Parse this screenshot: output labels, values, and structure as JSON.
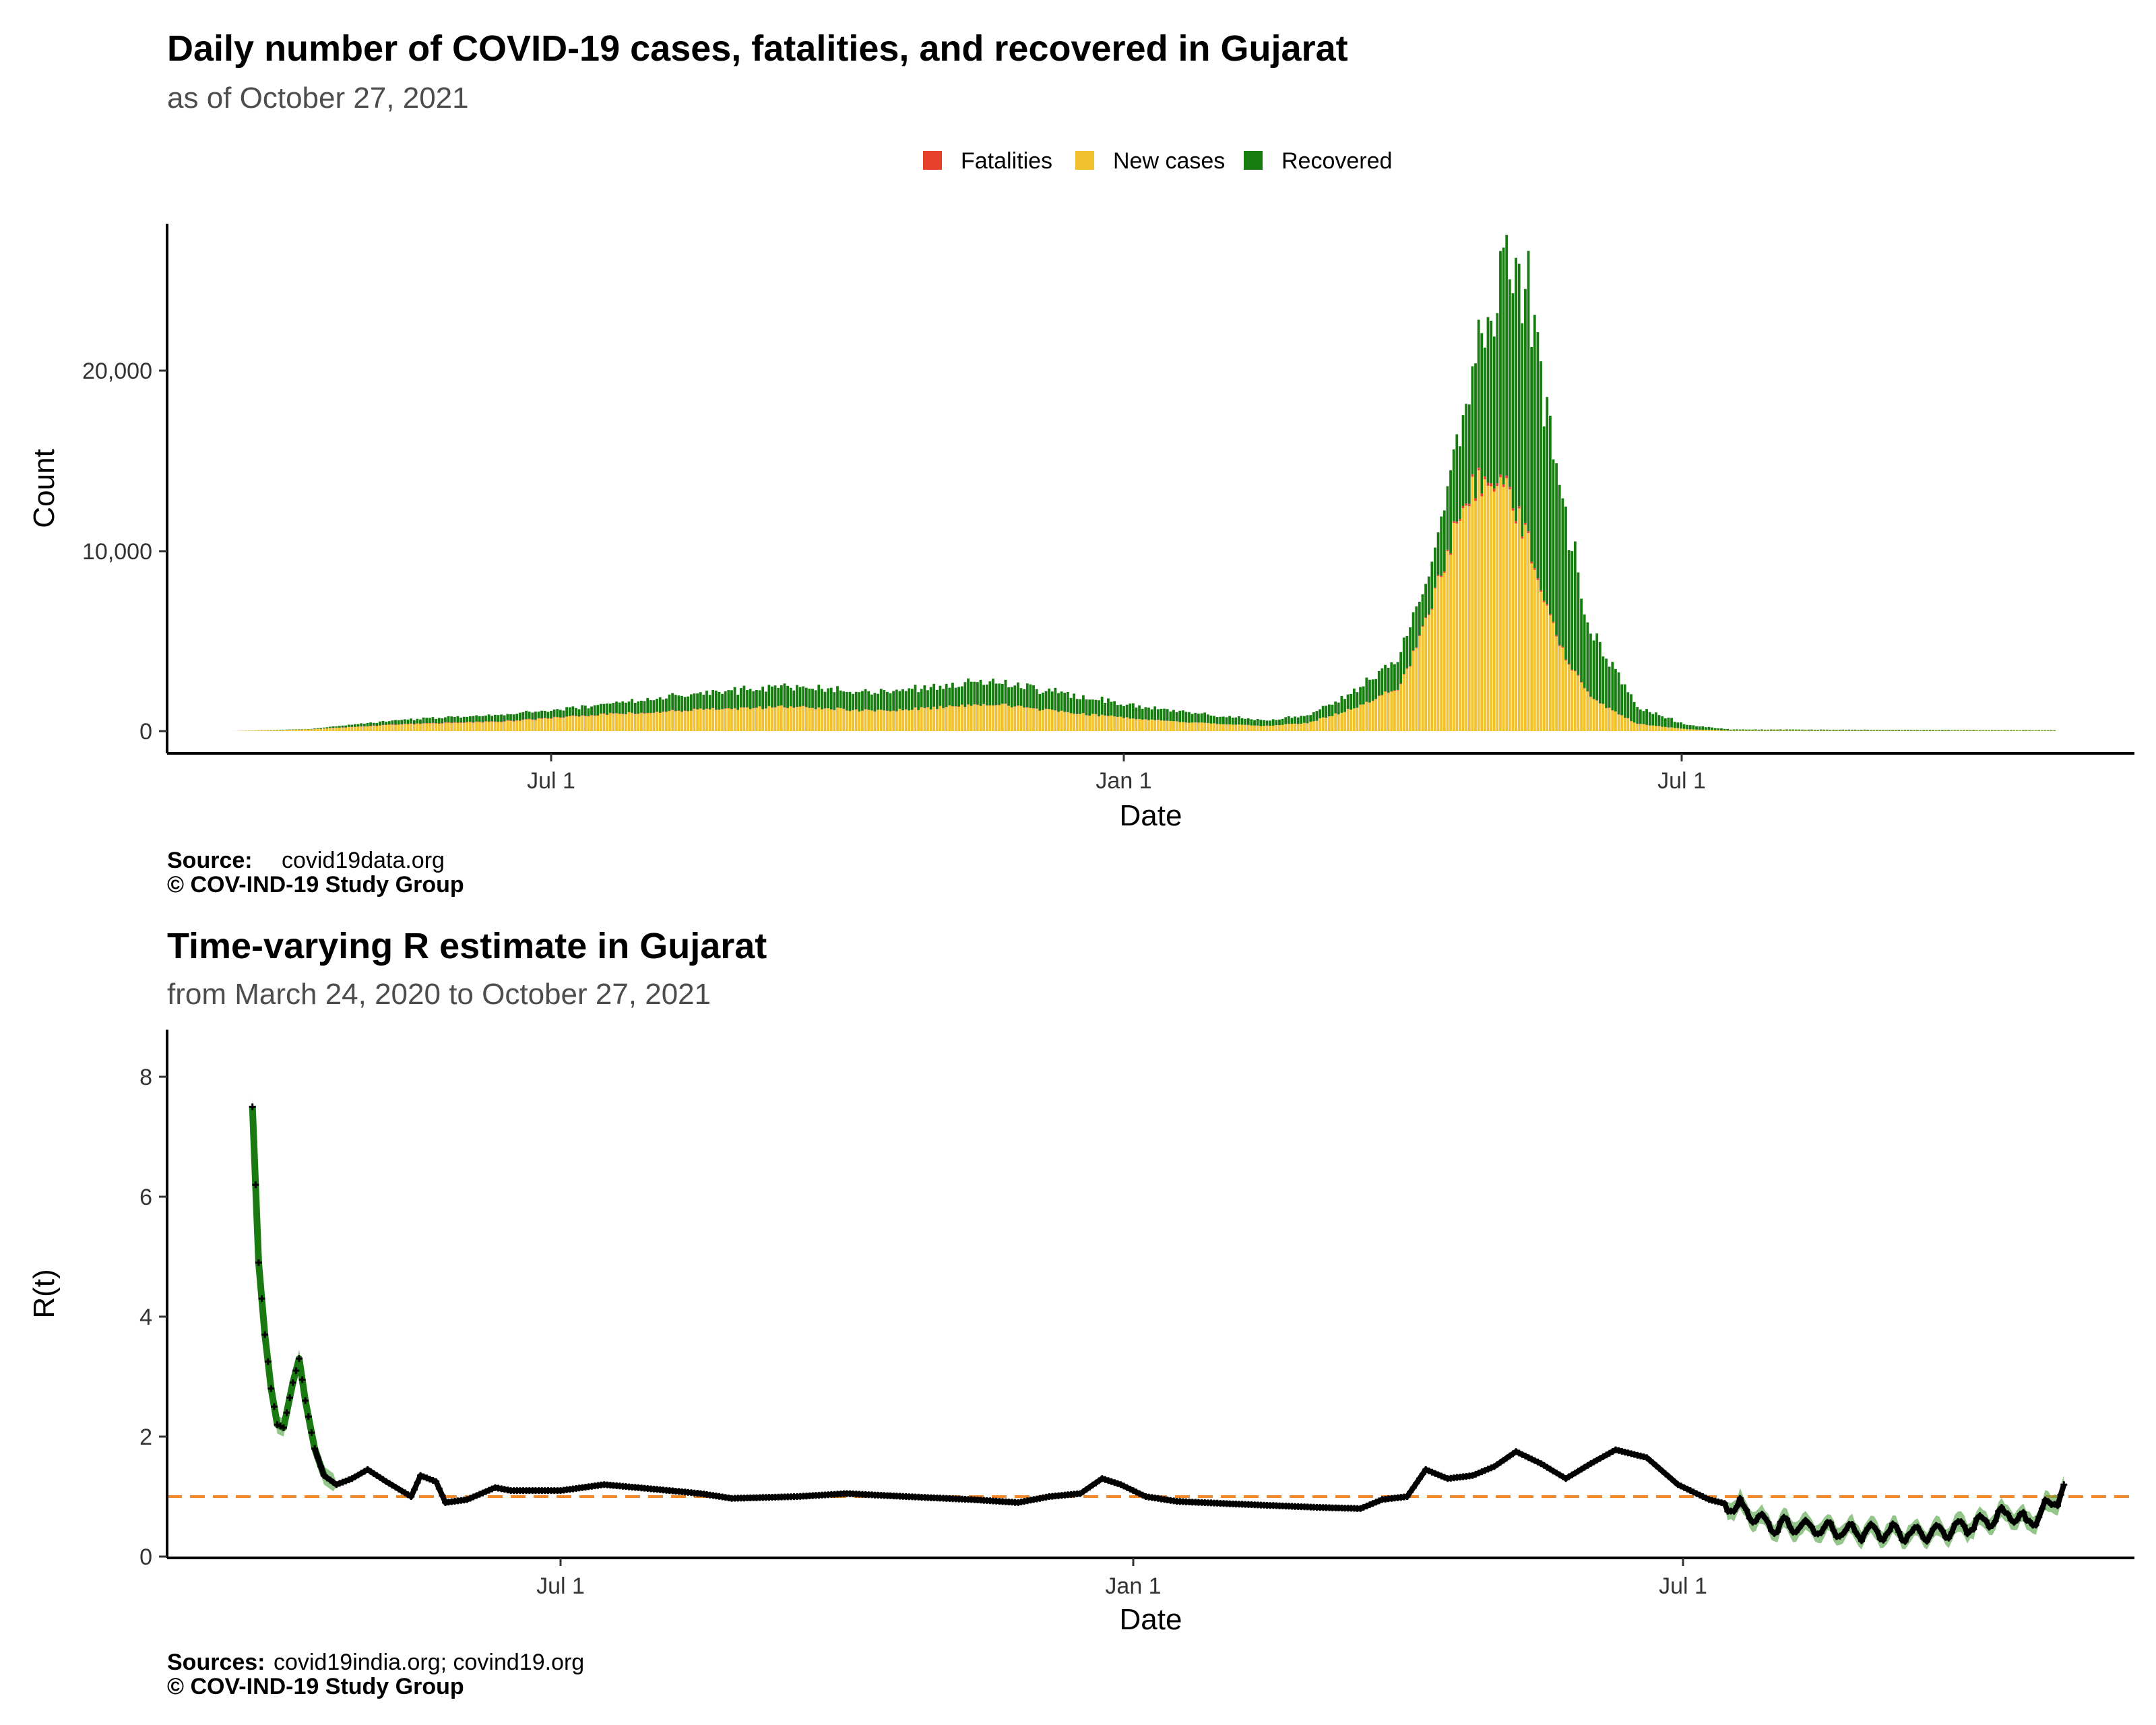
{
  "colors": {
    "fatalities": "#e8412b",
    "new_cases": "#f2c12e",
    "recovered": "#177c0f",
    "rt_line": "#000000",
    "rt_band": "#4c9e3d",
    "rt_early": "#1a7a12",
    "reference": "#f08a2c"
  },
  "chart_data": [
    {
      "type": "bar",
      "stacked": true,
      "title": "Daily number of COVID-19 cases, fatalities, and recovered in Gujarat",
      "subtitle": "as of October 27, 2021",
      "xlabel": "Date",
      "ylabel": "Count",
      "x_ticks": [
        "Jul 1",
        "Jan 1",
        "Jul 1"
      ],
      "y_ticks": [
        "0",
        "10,000",
        "20,000"
      ],
      "ylim": [
        0,
        27000
      ],
      "legend_position": "top",
      "legend": [
        "Fatalities",
        "New cases",
        "Recovered"
      ],
      "source_label": "Source:",
      "source_text": "covid19data.org",
      "copyright": "© COV-IND-19 Study Group",
      "date_range": [
        "2020-03-20",
        "2021-10-27"
      ],
      "keypoints": {
        "new_cases": [
          [
            "2020-03-20",
            0
          ],
          [
            "2020-04-15",
            100
          ],
          [
            "2020-05-15",
            380
          ],
          [
            "2020-06-15",
            520
          ],
          [
            "2020-07-15",
            900
          ],
          [
            "2020-08-15",
            1150
          ],
          [
            "2020-09-15",
            1350
          ],
          [
            "2020-10-15",
            1100
          ],
          [
            "2020-11-20",
            1500
          ],
          [
            "2020-12-15",
            1000
          ],
          [
            "2021-01-15",
            550
          ],
          [
            "2021-02-15",
            280
          ],
          [
            "2021-03-01",
            450
          ],
          [
            "2021-03-15",
            1200
          ],
          [
            "2021-03-31",
            2500
          ],
          [
            "2021-04-10",
            7000
          ],
          [
            "2021-04-20",
            12500
          ],
          [
            "2021-04-28",
            14500
          ],
          [
            "2021-05-05",
            13000
          ],
          [
            "2021-05-12",
            10000
          ],
          [
            "2021-05-20",
            5000
          ],
          [
            "2021-05-31",
            1800
          ],
          [
            "2021-06-15",
            400
          ],
          [
            "2021-07-01",
            100
          ],
          [
            "2021-07-15",
            30
          ],
          [
            "2021-10-27",
            20
          ]
        ],
        "recovered": [
          [
            "2020-03-20",
            0
          ],
          [
            "2020-04-15",
            20
          ],
          [
            "2020-05-15",
            250
          ],
          [
            "2020-06-15",
            350
          ],
          [
            "2020-07-15",
            500
          ],
          [
            "2020-08-15",
            900
          ],
          [
            "2020-09-15",
            1150
          ],
          [
            "2020-10-15",
            1000
          ],
          [
            "2020-11-20",
            1300
          ],
          [
            "2020-12-15",
            1000
          ],
          [
            "2021-01-15",
            600
          ],
          [
            "2021-02-15",
            320
          ],
          [
            "2021-03-01",
            400
          ],
          [
            "2021-03-15",
            900
          ],
          [
            "2021-03-31",
            1700
          ],
          [
            "2021-04-10",
            2300
          ],
          [
            "2021-04-20",
            5000
          ],
          [
            "2021-04-28",
            8500
          ],
          [
            "2021-05-05",
            12500
          ],
          [
            "2021-05-12",
            13500
          ],
          [
            "2021-05-20",
            9000
          ],
          [
            "2021-05-31",
            4000
          ],
          [
            "2021-06-15",
            900
          ],
          [
            "2021-07-01",
            250
          ],
          [
            "2021-07-15",
            60
          ],
          [
            "2021-10-27",
            30
          ]
        ],
        "fatalities": [
          [
            "2020-03-20",
            0
          ],
          [
            "2020-04-15",
            5
          ],
          [
            "2020-05-15",
            25
          ],
          [
            "2020-06-15",
            28
          ],
          [
            "2020-07-15",
            22
          ],
          [
            "2020-08-15",
            18
          ],
          [
            "2020-09-15",
            15
          ],
          [
            "2020-10-15",
            10
          ],
          [
            "2020-11-20",
            15
          ],
          [
            "2020-12-15",
            10
          ],
          [
            "2021-01-15",
            5
          ],
          [
            "2021-02-15",
            2
          ],
          [
            "2021-03-15",
            5
          ],
          [
            "2021-04-10",
            50
          ],
          [
            "2021-04-28",
            170
          ],
          [
            "2021-05-12",
            100
          ],
          [
            "2021-05-31",
            20
          ],
          [
            "2021-07-01",
            1
          ],
          [
            "2021-10-27",
            0
          ]
        ]
      }
    },
    {
      "type": "line",
      "title": "Time-varying R estimate in Gujarat",
      "subtitle": "from March 24, 2020 to October 27, 2021",
      "xlabel": "Date",
      "ylabel": "R(t)",
      "x_ticks": [
        "Jul 1",
        "Jan 1",
        "Jul 1"
      ],
      "y_ticks": [
        "0",
        "2",
        "4",
        "6",
        "8"
      ],
      "ylim": [
        0,
        8.8
      ],
      "reference_line": 1,
      "source_label": "Sources:",
      "source_text": "covid19india.org; covind19.org",
      "copyright": "© COV-IND-19 Study Group",
      "date_range": [
        "2020-03-24",
        "2021-10-27"
      ],
      "rt_keypoints": [
        [
          "2020-03-24",
          7.5
        ],
        [
          "2020-03-26",
          4.9
        ],
        [
          "2020-03-28",
          3.7
        ],
        [
          "2020-03-30",
          2.8
        ],
        [
          "2020-04-01",
          2.2
        ],
        [
          "2020-04-03",
          2.15
        ],
        [
          "2020-04-06",
          2.9
        ],
        [
          "2020-04-08",
          3.3
        ],
        [
          "2020-04-10",
          2.6
        ],
        [
          "2020-04-13",
          1.8
        ],
        [
          "2020-04-16",
          1.35
        ],
        [
          "2020-04-20",
          1.2
        ],
        [
          "2020-04-25",
          1.3
        ],
        [
          "2020-04-30",
          1.45
        ],
        [
          "2020-05-06",
          1.25
        ],
        [
          "2020-05-14",
          1.0
        ],
        [
          "2020-05-17",
          1.35
        ],
        [
          "2020-05-22",
          1.25
        ],
        [
          "2020-05-25",
          0.9
        ],
        [
          "2020-06-01",
          0.95
        ],
        [
          "2020-06-10",
          1.15
        ],
        [
          "2020-06-15",
          1.1
        ],
        [
          "2020-07-01",
          1.1
        ],
        [
          "2020-07-15",
          1.2
        ],
        [
          "2020-08-01",
          1.12
        ],
        [
          "2020-08-15",
          1.05
        ],
        [
          "2020-08-25",
          0.97
        ],
        [
          "2020-09-15",
          1.0
        ],
        [
          "2020-10-01",
          1.05
        ],
        [
          "2020-10-20",
          1.0
        ],
        [
          "2020-11-10",
          0.95
        ],
        [
          "2020-11-25",
          0.9
        ],
        [
          "2020-12-05",
          1.0
        ],
        [
          "2020-12-15",
          1.05
        ],
        [
          "2020-12-22",
          1.3
        ],
        [
          "2020-12-28",
          1.2
        ],
        [
          "2021-01-05",
          1.0
        ],
        [
          "2021-01-15",
          0.92
        ],
        [
          "2021-02-01",
          0.88
        ],
        [
          "2021-02-15",
          0.85
        ],
        [
          "2021-03-01",
          0.82
        ],
        [
          "2021-03-15",
          0.8
        ],
        [
          "2021-03-22",
          0.95
        ],
        [
          "2021-03-30",
          1.0
        ],
        [
          "2021-04-05",
          1.45
        ],
        [
          "2021-04-12",
          1.3
        ],
        [
          "2021-04-20",
          1.35
        ],
        [
          "2021-04-27",
          1.5
        ],
        [
          "2021-05-04",
          1.75
        ],
        [
          "2021-05-12",
          1.55
        ],
        [
          "2021-05-20",
          1.3
        ],
        [
          "2021-05-28",
          1.55
        ],
        [
          "2021-06-05",
          1.78
        ],
        [
          "2021-06-15",
          1.65
        ],
        [
          "2021-06-25",
          1.2
        ],
        [
          "2021-07-05",
          0.95
        ],
        [
          "2021-07-15",
          0.82
        ],
        [
          "2021-07-25",
          0.5
        ],
        [
          "2021-08-05",
          0.5
        ],
        [
          "2021-08-15",
          0.42
        ],
        [
          "2021-09-01",
          0.4
        ],
        [
          "2021-09-15",
          0.38
        ],
        [
          "2021-09-22",
          0.45
        ],
        [
          "2021-10-01",
          0.58
        ],
        [
          "2021-10-10",
          0.72
        ],
        [
          "2021-10-15",
          0.55
        ],
        [
          "2021-10-20",
          0.75
        ],
        [
          "2021-10-27",
          1.1
        ]
      ]
    }
  ]
}
